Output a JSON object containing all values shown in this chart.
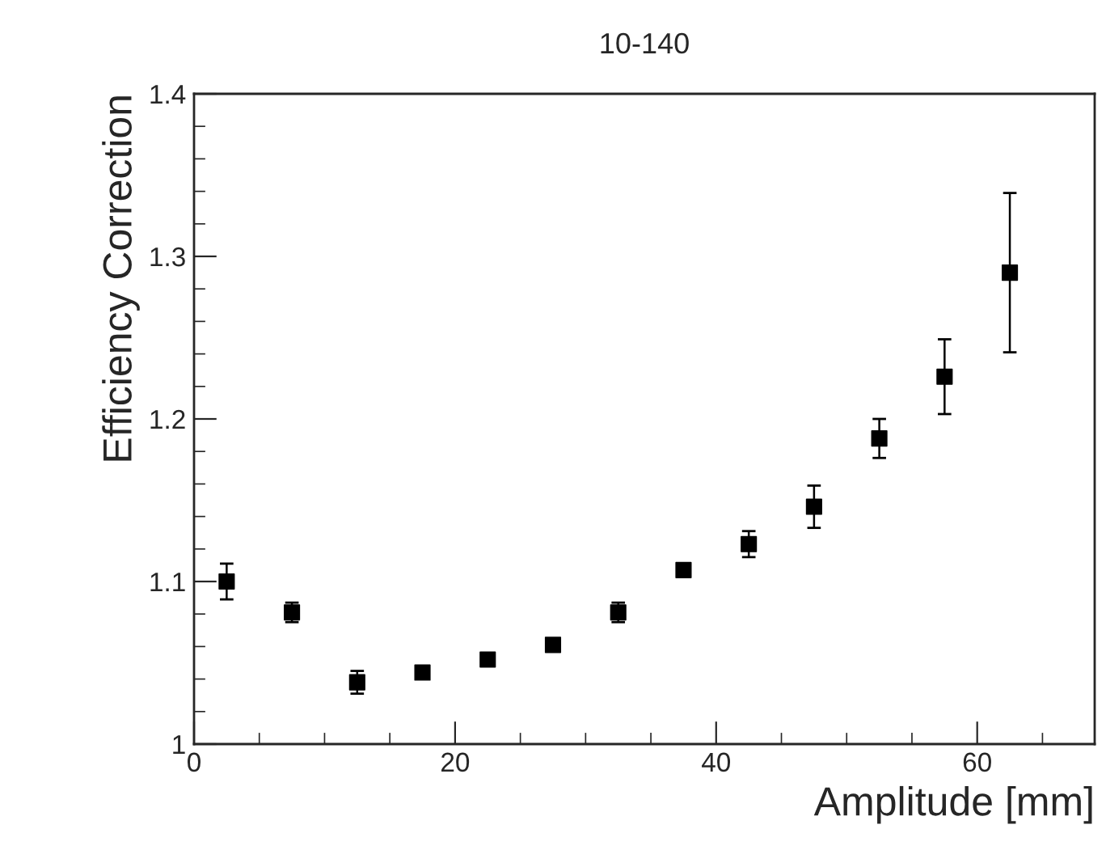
{
  "chart_data": {
    "type": "scatter",
    "title": "10-140",
    "xlabel": "Amplitude [mm]",
    "ylabel": "Efficiency Correction",
    "x": [
      2.5,
      7.5,
      12.5,
      17.5,
      22.5,
      27.5,
      32.5,
      37.5,
      42.5,
      47.5,
      52.5,
      57.5,
      62.5
    ],
    "series": [
      {
        "color": "#000000",
        "values": [
          1.1,
          1.081,
          1.038,
          1.044,
          1.052,
          1.061,
          1.081,
          1.107,
          1.123,
          1.146,
          1.188,
          1.226,
          1.29
        ],
        "errors": [
          0.011,
          0.006,
          0.007,
          0.003,
          0.004,
          0.003,
          0.006,
          0.004,
          0.008,
          0.013,
          0.012,
          0.023,
          0.049
        ]
      }
    ],
    "xlim": [
      0,
      69
    ],
    "xticks": [
      0,
      20,
      40,
      60
    ],
    "ylim": [
      1,
      1.4
    ],
    "yticks": [
      1,
      1.1,
      1.2,
      1.3,
      1.4
    ],
    "marker": "square",
    "grid": false,
    "legend": false
  }
}
